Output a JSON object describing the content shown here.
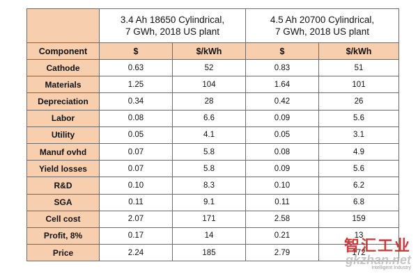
{
  "table": {
    "groups": [
      {
        "line1": "3.4 Ah 18650 Cylindrical,",
        "line2": "7 GWh, 2018 US plant"
      },
      {
        "line1": "4.5 Ah 20700 Cylindrical,",
        "line2": "7 GWh, 2018 US plant"
      }
    ],
    "columns": [
      "Component",
      "$",
      "$/kWh",
      "$",
      "$/kWh"
    ],
    "rows": [
      {
        "label": "Cathode",
        "v": [
          "0.63",
          "52",
          "0.83",
          "51"
        ]
      },
      {
        "label": "Materials",
        "v": [
          "1.25",
          "104",
          "1.64",
          "101"
        ]
      },
      {
        "label": "Depreciation",
        "v": [
          "0.34",
          "28",
          "0.42",
          "26"
        ]
      },
      {
        "label": "Labor",
        "v": [
          "0.08",
          "6.6",
          "0.09",
          "5.6"
        ]
      },
      {
        "label": "Utility",
        "v": [
          "0.05",
          "4.1",
          "0.05",
          "3.1"
        ]
      },
      {
        "label": "Manuf ovhd",
        "v": [
          "0.07",
          "5.8",
          "0.08",
          "4.9"
        ]
      },
      {
        "label": "Yield losses",
        "v": [
          "0.07",
          "5.8",
          "0.09",
          "5.6"
        ]
      },
      {
        "label": "R&D",
        "v": [
          "0.10",
          "8.3",
          "0.10",
          "6.2"
        ]
      },
      {
        "label": "SGA",
        "v": [
          "0.11",
          "9.1",
          "0.11",
          "6.8"
        ]
      },
      {
        "label": "Cell cost",
        "v": [
          "2.07",
          "171",
          "2.58",
          "159"
        ]
      },
      {
        "label": "Profit, 8%",
        "v": [
          "0.17",
          "14",
          "0.21",
          "13"
        ]
      },
      {
        "label": "Price",
        "v": [
          "2.24",
          "185",
          "2.79",
          "172"
        ]
      }
    ]
  },
  "watermark": {
    "main": "智汇工业",
    "site": "gkzhan.net",
    "tag": "Intelligent Industry"
  }
}
